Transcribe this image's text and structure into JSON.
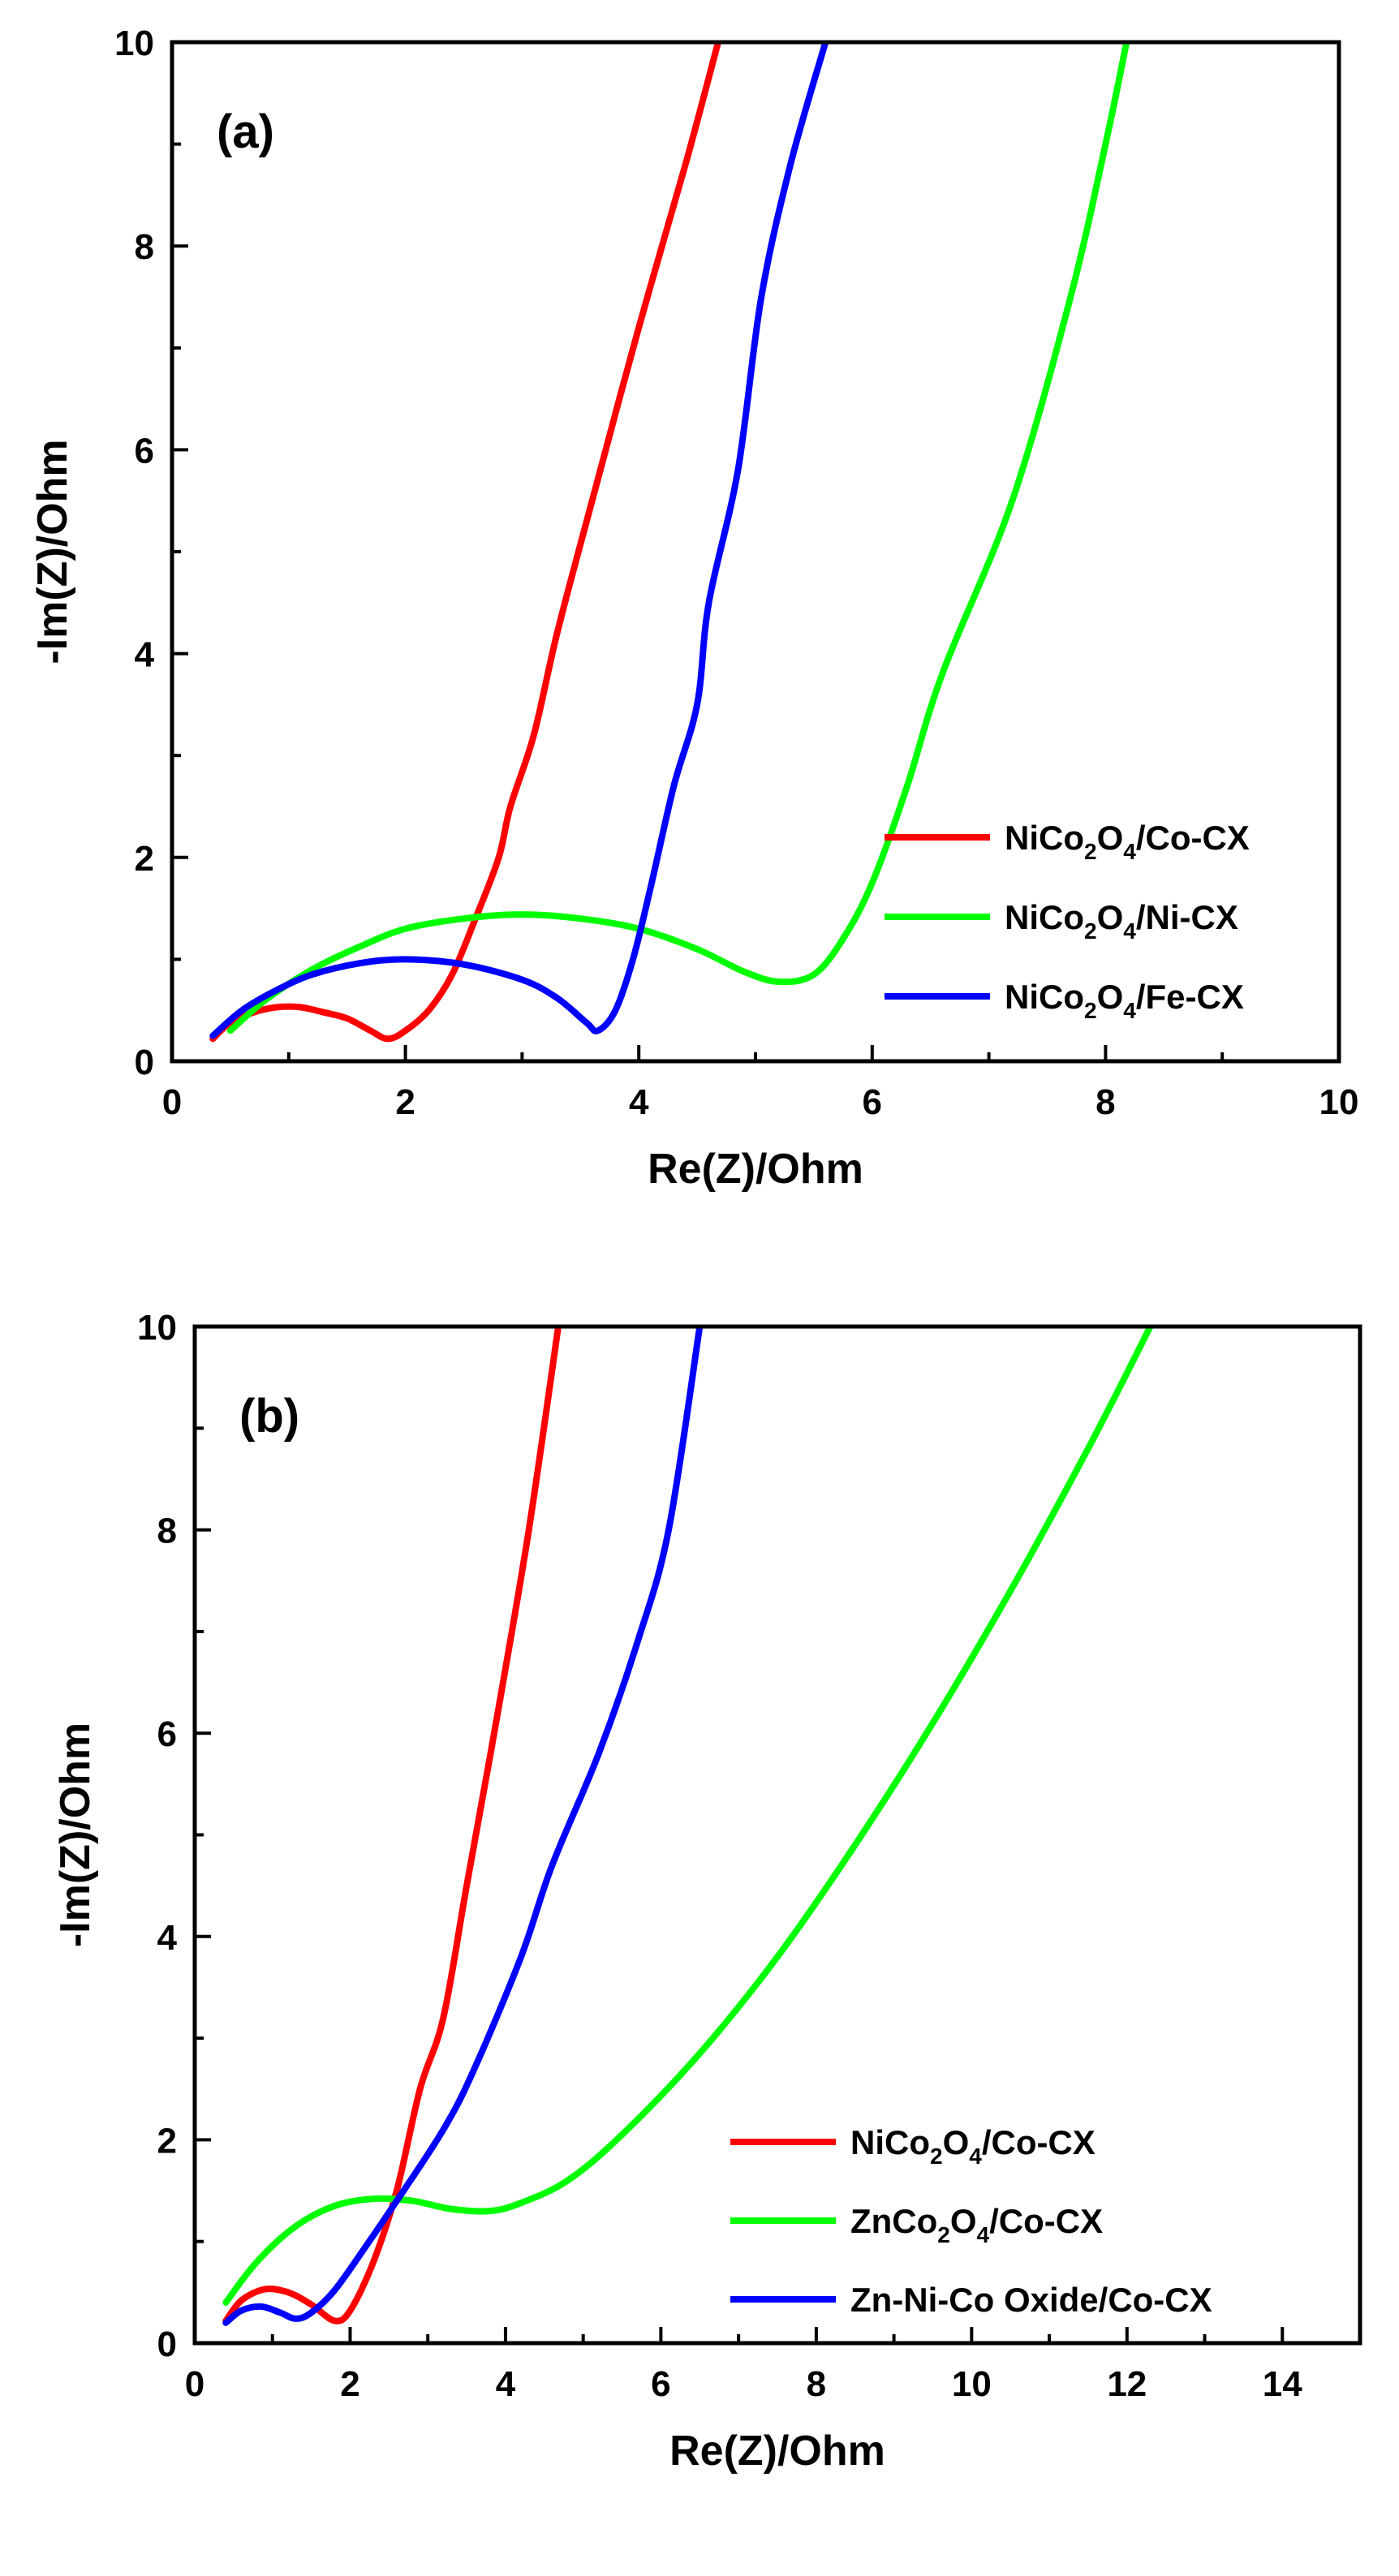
{
  "chart_data": [
    {
      "type": "line",
      "panel_label": "(a)",
      "xlabel": "Re(Z)/Ohm",
      "ylabel": "-Im(Z)/Ohm",
      "xlim": [
        0,
        10
      ],
      "ylim": [
        0,
        10
      ],
      "x_ticks": [
        0,
        2,
        4,
        6,
        8,
        10
      ],
      "y_ticks": [
        0,
        2,
        4,
        6,
        8,
        10
      ],
      "legend_position": "lower-right",
      "series": [
        {
          "name": "NiCo2O4/Co-CX",
          "legend": {
            "pre": "NiCo",
            "sub1": "2",
            "mid": "O",
            "sub2": "4",
            "post": "/Co-CX"
          },
          "color": "#ff0000",
          "points": [
            [
              0.35,
              0.22
            ],
            [
              0.5,
              0.38
            ],
            [
              0.7,
              0.48
            ],
            [
              0.9,
              0.53
            ],
            [
              1.1,
              0.53
            ],
            [
              1.3,
              0.48
            ],
            [
              1.5,
              0.42
            ],
            [
              1.7,
              0.3
            ],
            [
              1.85,
              0.22
            ],
            [
              2.0,
              0.3
            ],
            [
              2.2,
              0.5
            ],
            [
              2.4,
              0.85
            ],
            [
              2.6,
              1.4
            ],
            [
              2.8,
              2.0
            ],
            [
              2.9,
              2.5
            ],
            [
              3.1,
              3.2
            ],
            [
              3.3,
              4.2
            ],
            [
              3.6,
              5.5
            ],
            [
              4.0,
              7.2
            ],
            [
              4.4,
              8.8
            ],
            [
              4.68,
              10.0
            ]
          ]
        },
        {
          "name": "NiCo2O4/Ni-CX",
          "legend": {
            "pre": "NiCo",
            "sub1": "2",
            "mid": "O",
            "sub2": "4",
            "post": "/Ni-CX"
          },
          "color": "#00ff00",
          "points": [
            [
              0.5,
              0.3
            ],
            [
              0.8,
              0.6
            ],
            [
              1.2,
              0.9
            ],
            [
              1.6,
              1.12
            ],
            [
              2.0,
              1.3
            ],
            [
              2.5,
              1.4
            ],
            [
              3.0,
              1.44
            ],
            [
              3.5,
              1.4
            ],
            [
              4.0,
              1.3
            ],
            [
              4.5,
              1.1
            ],
            [
              4.9,
              0.88
            ],
            [
              5.2,
              0.78
            ],
            [
              5.5,
              0.85
            ],
            [
              5.75,
              1.2
            ],
            [
              6.0,
              1.75
            ],
            [
              6.3,
              2.7
            ],
            [
              6.6,
              3.8
            ],
            [
              7.2,
              5.5
            ],
            [
              7.7,
              7.5
            ],
            [
              8.0,
              9.0
            ],
            [
              8.18,
              10.0
            ]
          ]
        },
        {
          "name": "NiCo2O4/Fe-CX",
          "legend": {
            "pre": "NiCo",
            "sub1": "2",
            "mid": "O",
            "sub2": "4",
            "post": "/Fe-CX"
          },
          "color": "#0000ff",
          "points": [
            [
              0.35,
              0.25
            ],
            [
              0.6,
              0.5
            ],
            [
              0.9,
              0.7
            ],
            [
              1.2,
              0.85
            ],
            [
              1.6,
              0.96
            ],
            [
              2.0,
              1.0
            ],
            [
              2.5,
              0.95
            ],
            [
              3.0,
              0.8
            ],
            [
              3.3,
              0.62
            ],
            [
              3.55,
              0.38
            ],
            [
              3.65,
              0.3
            ],
            [
              3.8,
              0.5
            ],
            [
              3.95,
              1.0
            ],
            [
              4.1,
              1.7
            ],
            [
              4.3,
              2.7
            ],
            [
              4.5,
              3.5
            ],
            [
              4.6,
              4.5
            ],
            [
              4.85,
              5.8
            ],
            [
              5.05,
              7.5
            ],
            [
              5.3,
              8.8
            ],
            [
              5.6,
              10.0
            ]
          ]
        }
      ]
    },
    {
      "type": "line",
      "panel_label": "(b)",
      "xlabel": "Re(Z)/Ohm",
      "ylabel": "-Im(Z)/Ohm",
      "xlim": [
        0,
        15
      ],
      "ylim": [
        0,
        10
      ],
      "x_ticks": [
        0,
        2,
        4,
        6,
        8,
        10,
        12,
        14
      ],
      "y_ticks": [
        0,
        2,
        4,
        6,
        8,
        10
      ],
      "legend_position": "lower-right",
      "series": [
        {
          "name": "NiCo2O4/Co-CX",
          "legend": {
            "pre": "NiCo",
            "sub1": "2",
            "mid": "O",
            "sub2": "4",
            "post": "/Co-CX"
          },
          "color": "#ff0000",
          "points": [
            [
              0.4,
              0.22
            ],
            [
              0.6,
              0.42
            ],
            [
              0.9,
              0.53
            ],
            [
              1.2,
              0.5
            ],
            [
              1.5,
              0.38
            ],
            [
              1.8,
              0.22
            ],
            [
              2.0,
              0.32
            ],
            [
              2.3,
              0.8
            ],
            [
              2.6,
              1.5
            ],
            [
              2.9,
              2.5
            ],
            [
              3.2,
              3.2
            ],
            [
              3.5,
              4.5
            ],
            [
              3.9,
              6.2
            ],
            [
              4.3,
              8.0
            ],
            [
              4.68,
              10.0
            ]
          ]
        },
        {
          "name": "ZnCo2O4/Co-CX",
          "legend": {
            "pre": "ZnCo",
            "sub1": "2",
            "mid": "O",
            "sub2": "4",
            "post": "/Co-CX"
          },
          "color": "#00ff00",
          "points": [
            [
              0.4,
              0.4
            ],
            [
              0.8,
              0.8
            ],
            [
              1.3,
              1.15
            ],
            [
              1.8,
              1.35
            ],
            [
              2.3,
              1.42
            ],
            [
              2.8,
              1.4
            ],
            [
              3.3,
              1.32
            ],
            [
              3.8,
              1.3
            ],
            [
              4.2,
              1.38
            ],
            [
              4.8,
              1.6
            ],
            [
              5.5,
              2.05
            ],
            [
              6.5,
              2.85
            ],
            [
              7.5,
              3.8
            ],
            [
              8.5,
              4.9
            ],
            [
              9.5,
              6.1
            ],
            [
              10.5,
              7.4
            ],
            [
              11.5,
              8.8
            ],
            [
              12.3,
              10.0
            ]
          ]
        },
        {
          "name": "Zn-Ni-Co Oxide/Co-CX",
          "legend": {
            "pre": "Zn-Ni-Co Oxide/Co-CX",
            "sub1": "",
            "mid": "",
            "sub2": "",
            "post": ""
          },
          "color": "#0000ff",
          "points": [
            [
              0.4,
              0.2
            ],
            [
              0.6,
              0.32
            ],
            [
              0.85,
              0.36
            ],
            [
              1.1,
              0.3
            ],
            [
              1.3,
              0.24
            ],
            [
              1.5,
              0.3
            ],
            [
              1.8,
              0.52
            ],
            [
              2.2,
              0.95
            ],
            [
              2.6,
              1.4
            ],
            [
              3.2,
              2.1
            ],
            [
              3.6,
              2.7
            ],
            [
              4.2,
              3.8
            ],
            [
              4.6,
              4.7
            ],
            [
              5.2,
              5.8
            ],
            [
              5.7,
              6.9
            ],
            [
              6.1,
              8.0
            ],
            [
              6.5,
              10.0
            ]
          ]
        }
      ]
    }
  ]
}
